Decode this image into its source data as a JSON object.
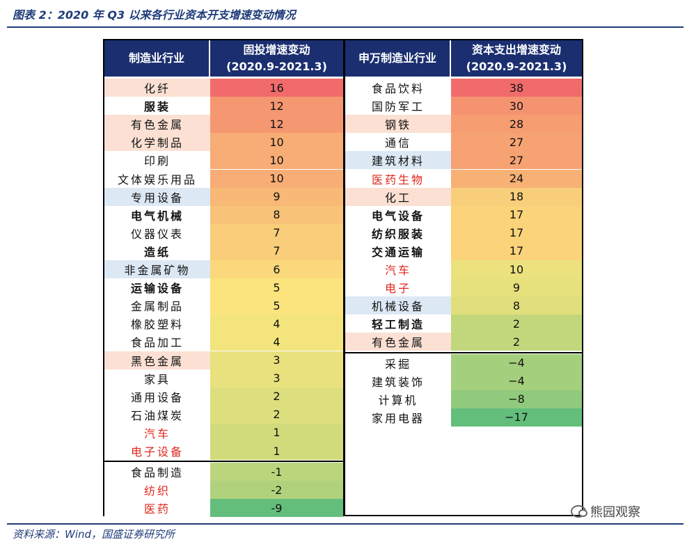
{
  "figure_title": "图表 2：2020 年 Q3 以来各行业资本开支增速变动情况",
  "source_note": "资料来源：Wind，国盛证券研究所",
  "watermark": "熊园观察",
  "colors": {
    "header_bg": "#1b2f70",
    "header_text": "#ffffff",
    "name_bg_pink": "#fbe0d3",
    "name_bg_blue": "#dce8f4",
    "name_bg_white": "#ffffff",
    "text_red": "#e0261b",
    "scale_high": "#f26b6b",
    "scale_mid": "#fbe67d",
    "scale_low": "#63be7b"
  },
  "chart_data": [
    {
      "type": "table",
      "columns": [
        "制造业行业",
        "固投增速变动 (2020.9-2021.3)"
      ],
      "header_name": "制造业行业",
      "header_value_line1": "固投增速变动",
      "header_value_line2": "(2020.9-2021.3)",
      "rows": [
        {
          "name": "化纤",
          "value": "16",
          "style": "normal",
          "bg": "pink"
        },
        {
          "name": "服装",
          "value": "12",
          "style": "bold",
          "bg": "white"
        },
        {
          "name": "有色金属",
          "value": "12",
          "style": "normal",
          "bg": "pink"
        },
        {
          "name": "化学制品",
          "value": "10",
          "style": "normal",
          "bg": "pink"
        },
        {
          "name": "印刷",
          "value": "10",
          "style": "normal",
          "bg": "white"
        },
        {
          "name": "文体娱乐用品",
          "value": "10",
          "style": "normal",
          "bg": "white"
        },
        {
          "name": "专用设备",
          "value": "9",
          "style": "normal",
          "bg": "blue"
        },
        {
          "name": "电气机械",
          "value": "8",
          "style": "bold",
          "bg": "white"
        },
        {
          "name": "仪器仪表",
          "value": "7",
          "style": "normal",
          "bg": "white"
        },
        {
          "name": "造纸",
          "value": "7",
          "style": "bold",
          "bg": "white"
        },
        {
          "name": "非金属矿物",
          "value": "6",
          "style": "normal",
          "bg": "blue"
        },
        {
          "name": "运输设备",
          "value": "5",
          "style": "bold",
          "bg": "white"
        },
        {
          "name": "金属制品",
          "value": "5",
          "style": "normal",
          "bg": "white"
        },
        {
          "name": "橡胶塑料",
          "value": "4",
          "style": "normal",
          "bg": "white"
        },
        {
          "name": "食品加工",
          "value": "4",
          "style": "normal",
          "bg": "white"
        },
        {
          "name": "黑色金属",
          "value": "3",
          "style": "normal",
          "bg": "pink"
        },
        {
          "name": "家具",
          "value": "3",
          "style": "normal",
          "bg": "white"
        },
        {
          "name": "通用设备",
          "value": "2",
          "style": "normal",
          "bg": "white"
        },
        {
          "name": "石油煤炭",
          "value": "2",
          "style": "normal",
          "bg": "white"
        },
        {
          "name": "汽车",
          "value": "1",
          "style": "red",
          "bg": "white"
        },
        {
          "name": "电子设备",
          "value": "1",
          "style": "red",
          "bg": "white"
        },
        {
          "name": "食品制造",
          "value": "-1",
          "style": "normal",
          "bg": "white"
        },
        {
          "name": "纺织",
          "value": "-2",
          "style": "red",
          "bg": "white"
        },
        {
          "name": "医药",
          "value": "-9",
          "style": "red",
          "bg": "white"
        }
      ]
    },
    {
      "type": "table",
      "columns": [
        "申万制造业行业",
        "资本支出增速变动 (2020.9-2021.3)"
      ],
      "header_name": "申万制造业行业",
      "header_value_line1": "资本支出增速变动",
      "header_value_line2": "(2020.9-2021.3)",
      "rows": [
        {
          "name": "食品饮料",
          "value": "38",
          "style": "normal",
          "bg": "white"
        },
        {
          "name": "国防军工",
          "value": "30",
          "style": "normal",
          "bg": "white"
        },
        {
          "name": "钢铁",
          "value": "28",
          "style": "normal",
          "bg": "pink"
        },
        {
          "name": "通信",
          "value": "27",
          "style": "normal",
          "bg": "white"
        },
        {
          "name": "建筑材料",
          "value": "27",
          "style": "normal",
          "bg": "blue"
        },
        {
          "name": "医药生物",
          "value": "24",
          "style": "red",
          "bg": "white"
        },
        {
          "name": "化工",
          "value": "18",
          "style": "normal",
          "bg": "pink"
        },
        {
          "name": "电气设备",
          "value": "17",
          "style": "bold",
          "bg": "white"
        },
        {
          "name": "纺织服装",
          "value": "17",
          "style": "bold",
          "bg": "white"
        },
        {
          "name": "交通运输",
          "value": "17",
          "style": "bold",
          "bg": "white"
        },
        {
          "name": "汽车",
          "value": "10",
          "style": "red",
          "bg": "white"
        },
        {
          "name": "电子",
          "value": "9",
          "style": "red",
          "bg": "white"
        },
        {
          "name": "机械设备",
          "value": "8",
          "style": "normal",
          "bg": "blue"
        },
        {
          "name": "轻工制造",
          "value": "2",
          "style": "bold",
          "bg": "white"
        },
        {
          "name": "有色金属",
          "value": "2",
          "style": "normal",
          "bg": "pink"
        },
        {
          "name": "采掘",
          "value": "−4",
          "style": "normal",
          "bg": "white"
        },
        {
          "name": "建筑装饰",
          "value": "−4",
          "style": "normal",
          "bg": "white"
        },
        {
          "name": "计算机",
          "value": "−8",
          "style": "normal",
          "bg": "white"
        },
        {
          "name": "家用电器",
          "value": "−17",
          "style": "normal",
          "bg": "white"
        }
      ]
    }
  ]
}
